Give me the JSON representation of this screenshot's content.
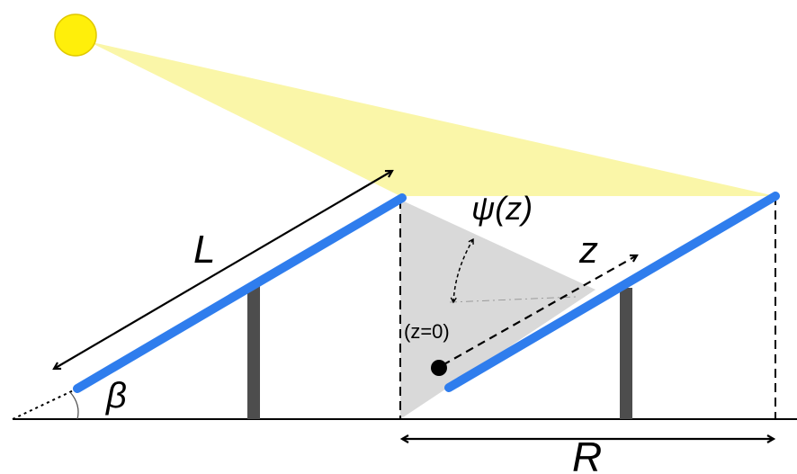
{
  "labels": {
    "panel_length": "L",
    "tilt_angle": "β",
    "row_spacing": "R",
    "position": "z",
    "view_angle": "ψ(z)",
    "origin": "(z=0)"
  },
  "colors": {
    "sun": "#ffef0a",
    "sun_outline": "#e0c800",
    "sun_rays": "#faf6a8",
    "shadow": "#d9d9d9",
    "panel": "#2f7ded",
    "post": "#4d4d4d",
    "ground": "#000000"
  },
  "icons": {
    "sun": "sun-icon"
  }
}
